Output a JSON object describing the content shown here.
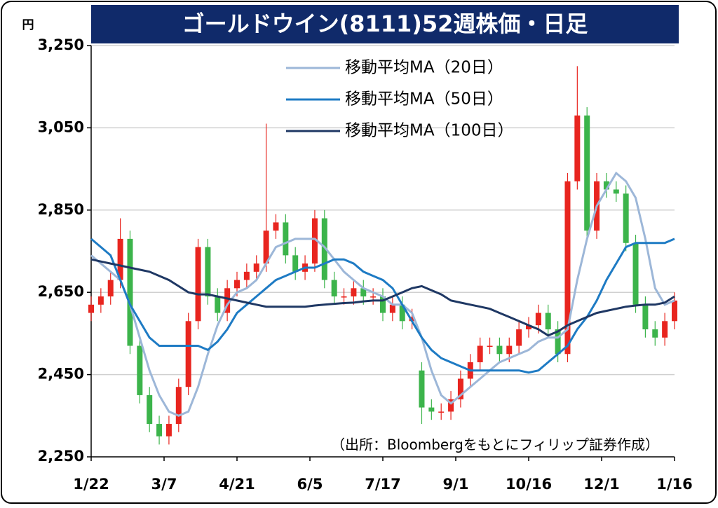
{
  "chart_data": {
    "type": "candlestick",
    "title": "ゴールドウイン(8111)52週株価・日足",
    "y_label": "円",
    "source": "（出所：Bloombergをもとにフィリップ証券作成）",
    "xlim": [
      0,
      240
    ],
    "xticks": [
      {
        "value": 0,
        "label": "1/22"
      },
      {
        "value": 30,
        "label": "3/7"
      },
      {
        "value": 60,
        "label": "4/21"
      },
      {
        "value": 90,
        "label": "6/5"
      },
      {
        "value": 120,
        "label": "7/17"
      },
      {
        "value": 150,
        "label": "9/1"
      },
      {
        "value": 180,
        "label": "10/16"
      },
      {
        "value": 210,
        "label": "12/1"
      },
      {
        "value": 240,
        "label": "1/16"
      }
    ],
    "ylim": [
      2250,
      3250
    ],
    "yticks": [
      {
        "value": 2250,
        "label": "2,250"
      },
      {
        "value": 2450,
        "label": "2,450"
      },
      {
        "value": 2650,
        "label": "2,650"
      },
      {
        "value": 2850,
        "label": "2,850"
      },
      {
        "value": 3050,
        "label": "3,050"
      },
      {
        "value": 3250,
        "label": "3,250"
      }
    ],
    "grid": true,
    "up_color": "#e8251f",
    "down_color": "#3cb44b",
    "x": [
      0,
      4,
      8,
      12,
      16,
      20,
      24,
      28,
      32,
      36,
      40,
      44,
      48,
      52,
      56,
      60,
      64,
      68,
      72,
      76,
      80,
      84,
      88,
      92,
      96,
      100,
      104,
      108,
      112,
      116,
      120,
      124,
      128,
      132,
      136,
      140,
      144,
      148,
      152,
      156,
      160,
      164,
      168,
      172,
      176,
      180,
      184,
      188,
      192,
      196,
      200,
      204,
      208,
      212,
      216,
      220,
      224,
      228,
      232,
      236,
      240
    ],
    "open": [
      2600,
      2620,
      2640,
      2680,
      2780,
      2520,
      2400,
      2330,
      2300,
      2330,
      2420,
      2580,
      2760,
      2640,
      2600,
      2660,
      2680,
      2700,
      2720,
      2800,
      2820,
      2740,
      2700,
      2720,
      2830,
      2680,
      2640,
      2640,
      2660,
      2640,
      2640,
      2600,
      2620,
      2580,
      2460,
      2370,
      2360,
      2360,
      2390,
      2440,
      2480,
      2520,
      2520,
      2500,
      2520,
      2560,
      2570,
      2600,
      2560,
      2500,
      2920,
      3080,
      2800,
      2920,
      2900,
      2890,
      2770,
      2620,
      2560,
      2540,
      2580
    ],
    "high": [
      2640,
      2660,
      2700,
      2830,
      2800,
      2540,
      2420,
      2350,
      2350,
      2440,
      2600,
      2780,
      2780,
      2660,
      2680,
      2700,
      2720,
      2740,
      3060,
      2840,
      2840,
      2760,
      2740,
      2850,
      2850,
      2700,
      2660,
      2680,
      2680,
      2660,
      2660,
      2640,
      2640,
      2610,
      2480,
      2390,
      2380,
      2410,
      2460,
      2500,
      2540,
      2540,
      2540,
      2540,
      2580,
      2590,
      2620,
      2620,
      2580,
      2940,
      3200,
      3100,
      2940,
      2940,
      2920,
      2910,
      2790,
      2640,
      2580,
      2600,
      2650
    ],
    "low": [
      2580,
      2600,
      2620,
      2660,
      2500,
      2380,
      2310,
      2280,
      2280,
      2310,
      2400,
      2560,
      2620,
      2580,
      2580,
      2640,
      2660,
      2680,
      2700,
      2780,
      2720,
      2680,
      2680,
      2700,
      2660,
      2620,
      2620,
      2620,
      2620,
      2620,
      2580,
      2580,
      2560,
      2560,
      2330,
      2340,
      2340,
      2340,
      2370,
      2420,
      2460,
      2500,
      2480,
      2480,
      2500,
      2540,
      2550,
      2540,
      2480,
      2480,
      2900,
      2780,
      2780,
      2880,
      2870,
      2750,
      2600,
      2540,
      2520,
      2520,
      2560
    ],
    "close": [
      2620,
      2640,
      2680,
      2780,
      2520,
      2400,
      2330,
      2300,
      2330,
      2420,
      2580,
      2760,
      2640,
      2600,
      2660,
      2680,
      2700,
      2720,
      2800,
      2820,
      2740,
      2700,
      2720,
      2830,
      2680,
      2640,
      2640,
      2660,
      2640,
      2640,
      2600,
      2620,
      2580,
      2590,
      2370,
      2360,
      2360,
      2390,
      2440,
      2480,
      2520,
      2520,
      2500,
      2520,
      2560,
      2570,
      2600,
      2560,
      2500,
      2920,
      3080,
      2800,
      2920,
      2900,
      2890,
      2770,
      2620,
      2560,
      2540,
      2580,
      2630
    ],
    "series": [
      {
        "name": "移動平均MA（20日）",
        "color": "#9db7d8",
        "values": [
          2740,
          2720,
          2700,
          2680,
          2620,
          2540,
          2460,
          2400,
          2360,
          2350,
          2360,
          2420,
          2500,
          2570,
          2620,
          2650,
          2660,
          2680,
          2720,
          2760,
          2770,
          2780,
          2780,
          2780,
          2760,
          2730,
          2700,
          2680,
          2660,
          2650,
          2640,
          2620,
          2620,
          2600,
          2540,
          2460,
          2400,
          2380,
          2400,
          2420,
          2440,
          2460,
          2480,
          2490,
          2500,
          2510,
          2530,
          2540,
          2540,
          2560,
          2680,
          2780,
          2860,
          2900,
          2940,
          2920,
          2880,
          2780,
          2660,
          2620,
          2630
        ]
      },
      {
        "name": "移動平均MA（50日）",
        "color": "#1e7bc4",
        "values": [
          2780,
          2760,
          2740,
          2680,
          2620,
          2580,
          2540,
          2520,
          2520,
          2520,
          2520,
          2520,
          2510,
          2530,
          2560,
          2600,
          2620,
          2640,
          2660,
          2680,
          2690,
          2700,
          2710,
          2710,
          2720,
          2730,
          2730,
          2720,
          2700,
          2690,
          2680,
          2660,
          2620,
          2580,
          2540,
          2510,
          2490,
          2480,
          2470,
          2460,
          2460,
          2460,
          2460,
          2460,
          2460,
          2455,
          2460,
          2480,
          2500,
          2520,
          2560,
          2590,
          2630,
          2680,
          2720,
          2760,
          2770,
          2770,
          2770,
          2770,
          2780
        ]
      },
      {
        "name": "移動平均MA（100日）",
        "color": "#1f3864",
        "values": [
          2730,
          2725,
          2720,
          2715,
          2710,
          2705,
          2700,
          2690,
          2680,
          2665,
          2650,
          2645,
          2645,
          2640,
          2635,
          2630,
          2625,
          2620,
          2615,
          2615,
          2615,
          2615,
          2615,
          2618,
          2620,
          2622,
          2624,
          2625,
          2628,
          2630,
          2630,
          2640,
          2650,
          2660,
          2665,
          2655,
          2645,
          2630,
          2625,
          2620,
          2615,
          2610,
          2600,
          2590,
          2580,
          2570,
          2560,
          2545,
          2555,
          2570,
          2580,
          2590,
          2600,
          2605,
          2610,
          2615,
          2618,
          2620,
          2620,
          2625,
          2640
        ]
      }
    ]
  }
}
